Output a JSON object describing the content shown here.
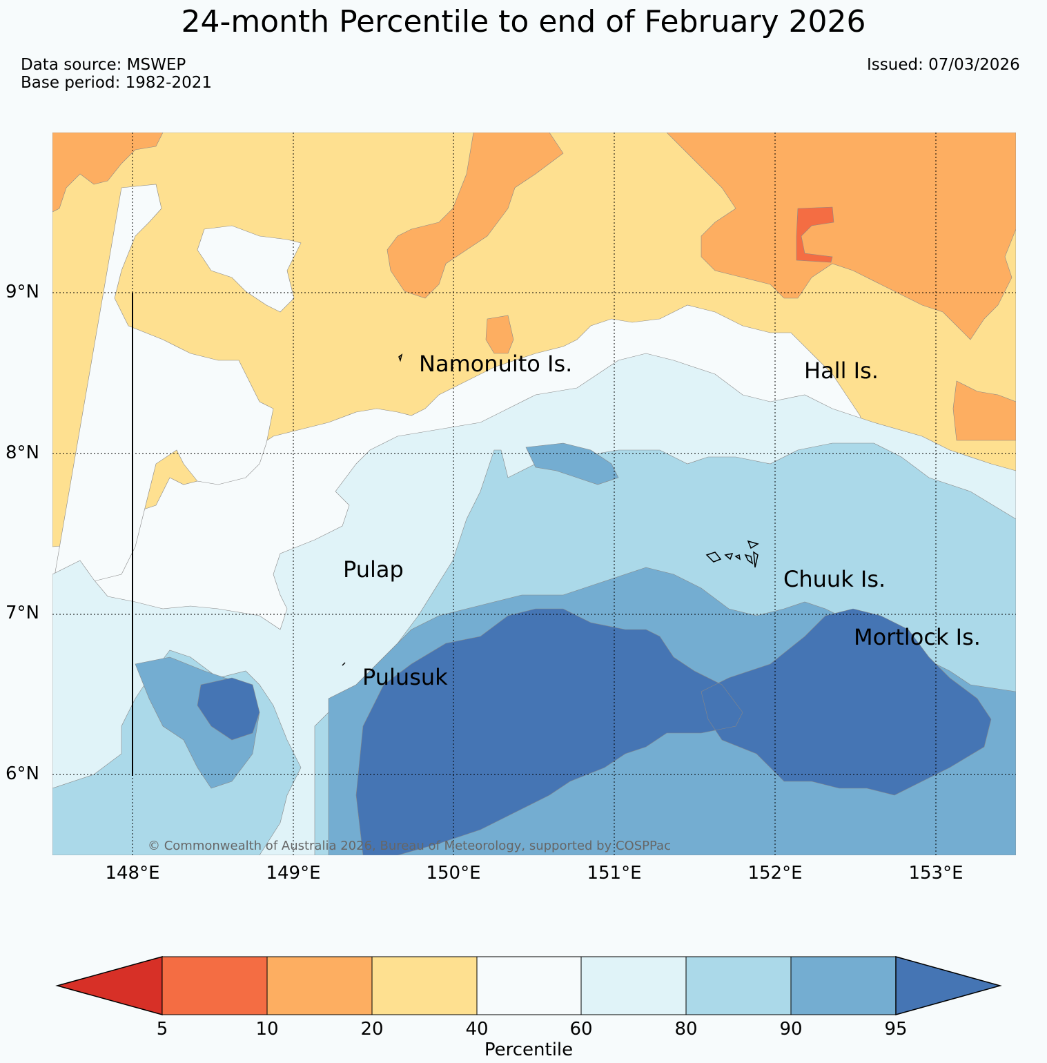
{
  "header": {
    "title": "24-month Percentile to end of February 2026",
    "data_source": "Data source: MSWEP",
    "base_period": "Base period: 1982-2021",
    "issued": "Issued: 07/03/2026"
  },
  "map": {
    "lat_labels": [
      "9°N",
      "8°N",
      "7°N",
      "6°N"
    ],
    "lon_labels": [
      "148°E",
      "149°E",
      "150°E",
      "151°E",
      "152°E",
      "153°E"
    ],
    "islands": [
      {
        "name": "Namonuito Is."
      },
      {
        "name": "Hall Is."
      },
      {
        "name": "Pulap"
      },
      {
        "name": "Chuuk Is."
      },
      {
        "name": "Mortlock Is."
      },
      {
        "name": "Pulusuk"
      }
    ],
    "copyright": "© Commonwealth of Australia 2026, Bureau of Meteorology, supported by COSPPac"
  },
  "colorbar": {
    "title": "Percentile",
    "ticks": [
      "5",
      "10",
      "20",
      "40",
      "60",
      "80",
      "90",
      "95"
    ],
    "colors": [
      "#d73027",
      "#f46d43",
      "#fdae61",
      "#fee090",
      "#f7fbfc",
      "#e0f3f8",
      "#abd9e9",
      "#74add1",
      "#4575b4"
    ]
  }
}
